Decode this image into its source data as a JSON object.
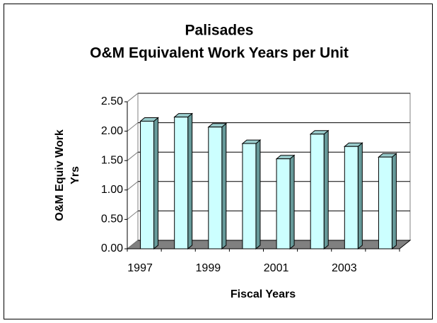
{
  "chart_data": {
    "type": "bar",
    "title": [
      "Palisades",
      "O&M Equivalent Work Years per Unit"
    ],
    "x_label": "Fiscal Years",
    "y_label": [
      "O&M Equiv Work",
      "Yrs"
    ],
    "categories": [
      "1997",
      null,
      "1999",
      null,
      "2001",
      null,
      "2003",
      null
    ],
    "values": [
      2.17,
      2.24,
      2.07,
      1.79,
      1.53,
      1.95,
      1.74,
      1.56
    ],
    "color": "#ccffff",
    "ylim": [
      0,
      2.5
    ],
    "yticks": [
      {
        "value": 0,
        "label": "0.00"
      },
      {
        "value": 0.5,
        "label": "0.50"
      },
      {
        "value": 1,
        "label": "1.00"
      },
      {
        "value": 1.5,
        "label": "1.50"
      },
      {
        "value": 2,
        "label": "2.00"
      },
      {
        "value": 2.5,
        "label": "2.50"
      }
    ],
    "grid": true
  }
}
